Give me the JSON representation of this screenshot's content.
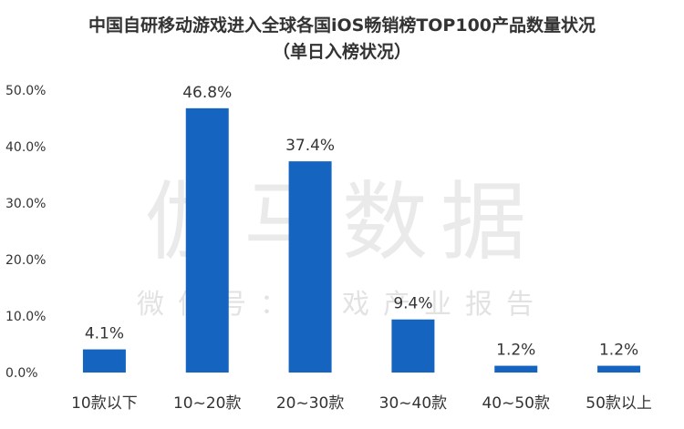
{
  "chart_data": {
    "type": "bar",
    "title_line1": "中国自研移动游戏进入全球各国iOS畅销榜TOP100产品数量状况",
    "title_line2": "（单日入榜状况）",
    "categories": [
      "10款以下",
      "10~20款",
      "20~30款",
      "30~40款",
      "40~50款",
      "50款以上"
    ],
    "values": [
      4.1,
      46.8,
      37.4,
      9.4,
      1.2,
      1.2
    ],
    "data_labels": [
      "4.1%",
      "46.8%",
      "37.4%",
      "9.4%",
      "1.2%",
      "1.2%"
    ],
    "yticks": [
      0,
      10,
      20,
      30,
      40,
      50
    ],
    "ytick_labels": [
      "0.0%",
      "10.0%",
      "20.0%",
      "30.0%",
      "40.0%",
      "50.0%"
    ],
    "ylim": [
      0,
      50
    ],
    "xlabel": "",
    "ylabel": "",
    "bar_color": "#1565C0",
    "watermark": {
      "main": "伽马数据",
      "sub": "微信号：游戏产业报告"
    }
  }
}
